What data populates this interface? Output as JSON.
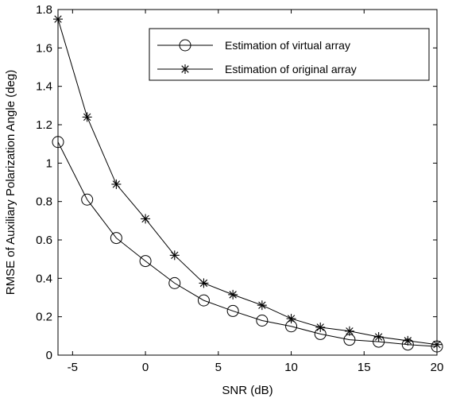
{
  "chart_data": {
    "type": "line",
    "title": "",
    "xlabel": "SNR (dB)",
    "ylabel": "RMSE of Auxiliary Polarization Angle (deg)",
    "xlim": [
      -6,
      20
    ],
    "ylim": [
      0,
      1.8
    ],
    "xticks": [
      -5,
      0,
      5,
      10,
      15,
      20
    ],
    "yticks": [
      0,
      0.2,
      0.4,
      0.6,
      0.8,
      1,
      1.2,
      1.4,
      1.6,
      1.8
    ],
    "xtick_labels": [
      "-5",
      "0",
      "5",
      "10",
      "15",
      "20"
    ],
    "ytick_labels": [
      "0",
      "0.2",
      "0.4",
      "0.6",
      "0.8",
      "1",
      "1.2",
      "1.4",
      "1.6",
      "1.8"
    ],
    "grid": false,
    "legend_position": "top-right",
    "x": [
      -6,
      -4,
      -2,
      0,
      2,
      4,
      6,
      8,
      10,
      12,
      14,
      16,
      18,
      20
    ],
    "series": [
      {
        "name": "Estimation of virtual array",
        "marker": "circle",
        "color": "#000000",
        "values": [
          1.11,
          0.81,
          0.61,
          0.49,
          0.375,
          0.285,
          0.23,
          0.18,
          0.15,
          0.11,
          0.08,
          0.07,
          0.055,
          0.045
        ]
      },
      {
        "name": "Estimation of original array",
        "marker": "asterisk",
        "color": "#000000",
        "values": [
          1.75,
          1.24,
          0.89,
          0.71,
          0.52,
          0.375,
          0.315,
          0.26,
          0.19,
          0.145,
          0.125,
          0.095,
          0.075,
          0.055
        ]
      }
    ]
  }
}
